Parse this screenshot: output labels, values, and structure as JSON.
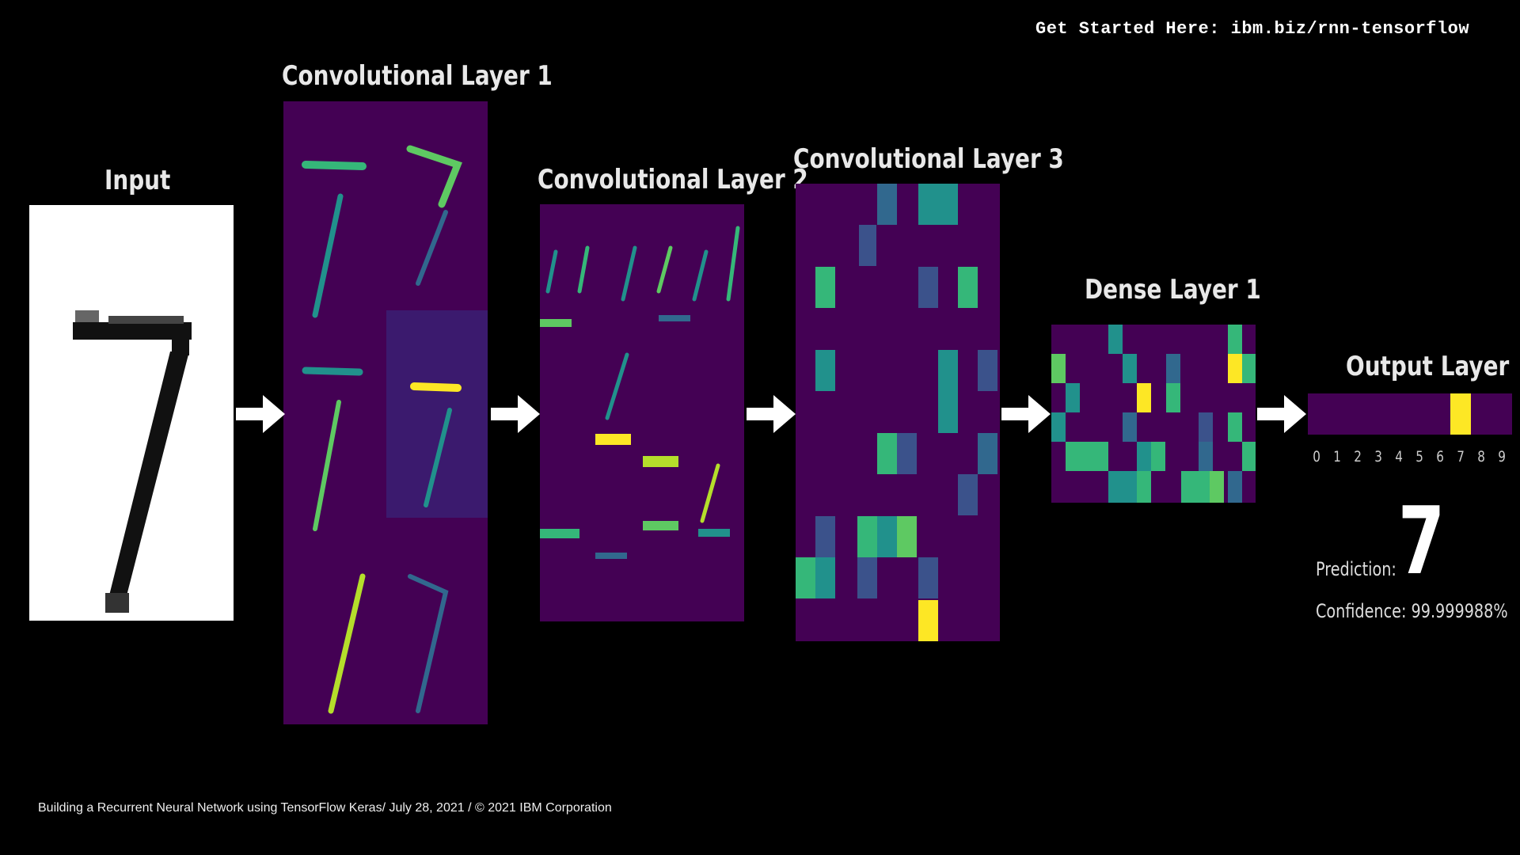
{
  "header": {
    "link_text": "Get Started Here: ibm.biz/rnn-tensorflow"
  },
  "layers": {
    "input": "Input",
    "conv1": "Convolutional Layer 1",
    "conv2": "Convolutional Layer 2",
    "conv3": "Convolutional Layer 3",
    "dense1": "Dense Layer 1",
    "output": "Output Layer"
  },
  "output": {
    "classes": [
      "0",
      "1",
      "2",
      "3",
      "4",
      "5",
      "6",
      "7",
      "8",
      "9"
    ],
    "active_class": "7",
    "prediction_label": "Prediction:",
    "prediction_value": "7",
    "confidence_text": "Confidence: 99.999988%"
  },
  "footer": {
    "text": "Building a Recurrent Neural Network using TensorFlow Keras/ July 28, 2021 / © 2021 IBM Corporation"
  },
  "colors": {
    "background": "#000000",
    "viridis_low": "#440154",
    "viridis_mid": "#21918c",
    "viridis_green": "#5ec962",
    "viridis_high": "#fde725",
    "arrow": "#ffffff"
  }
}
